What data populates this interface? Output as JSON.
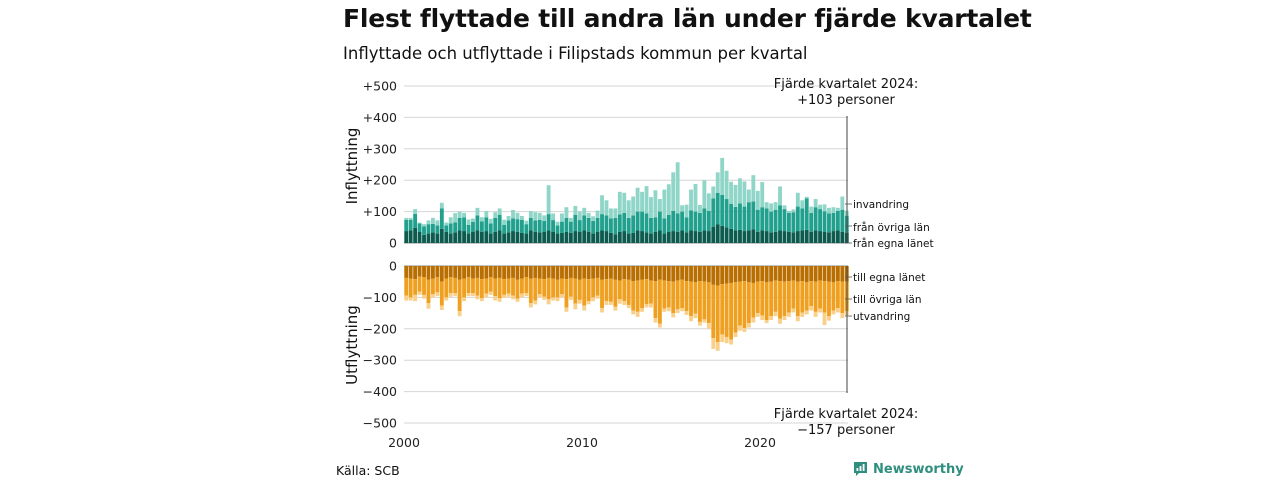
{
  "title": "Flest flyttade till andra län under fjärde kvartalet",
  "subtitle": "Inflyttade och utflyttade i Filipstads kommun per kvartal",
  "source": "Källa: SCB",
  "brand": {
    "name": "Newsworthy",
    "icon": "newsworthy-logo-icon",
    "color": "#2f8f7f"
  },
  "chart_data": {
    "type": "bar",
    "stacked": true,
    "x_start": 2000,
    "quarters_per_year": 4,
    "xticks": [
      "2000",
      "2010",
      "2020"
    ],
    "panels": [
      {
        "ylabel": "Inflyttning",
        "ylim": [
          0,
          500
        ],
        "yticks": [
          "0",
          "+100",
          "+200",
          "+300",
          "+400",
          "+500"
        ],
        "annotation": {
          "line1": "Fjärde kvartalet 2024:",
          "line2": "+103 personer"
        },
        "series": [
          {
            "name": "från egna länet",
            "color": "#0d5b4f",
            "values": [
              38,
              40,
              48,
              35,
              26,
              30,
              34,
              30,
              45,
              36,
              30,
              34,
              40,
              38,
              30,
              35,
              40,
              36,
              38,
              30,
              36,
              40,
              30,
              34,
              38,
              36,
              32,
              30,
              40,
              36,
              34,
              35,
              40,
              35,
              30,
              32,
              36,
              32,
              38,
              35,
              40,
              36,
              30,
              35,
              40,
              38,
              32,
              28,
              36,
              38,
              30,
              32,
              40,
              38,
              34,
              30,
              36,
              40,
              30,
              35,
              38,
              36,
              40,
              34,
              40,
              38,
              36,
              40,
              38,
              52,
              60,
              55,
              50,
              45,
              40,
              42,
              38,
              40,
              44,
              36,
              40,
              38,
              34,
              36,
              40,
              38,
              36,
              34,
              38,
              40,
              42,
              36,
              40,
              38,
              35,
              34,
              38,
              40,
              36,
              33
            ]
          },
          {
            "name": "från övriga län",
            "color": "#21a08d",
            "values": [
              36,
              34,
              45,
              27,
              27,
              30,
              27,
              26,
              65,
              20,
              32,
              32,
              40,
              44,
              28,
              32,
              48,
              33,
              44,
              32,
              44,
              50,
              28,
              38,
              40,
              40,
              42,
              30,
              40,
              36,
              40,
              35,
              52,
              38,
              26,
              36,
              44,
              36,
              52,
              38,
              48,
              44,
              40,
              45,
              52,
              50,
              46,
              52,
              55,
              58,
              50,
              56,
              60,
              62,
              60,
              50,
              46,
              60,
              48,
              55,
              64,
              58,
              60,
              48,
              64,
              62,
              60,
              70,
              64,
              90,
              100,
              98,
              90,
              80,
              75,
              84,
              78,
              90,
              88,
              70,
              74,
              72,
              66,
              70,
              80,
              70,
              60,
              64,
              78,
              70,
              100,
              60,
              74,
              70,
              66,
              60,
              58,
              62,
              70,
              54
            ]
          },
          {
            "name": "invandring",
            "color": "#8fd5c8",
            "values": [
              6,
              6,
              15,
              3,
              7,
              12,
              19,
              16,
              18,
              9,
              20,
              29,
              20,
              14,
              17,
              11,
              24,
              13,
              20,
              15,
              18,
              20,
              16,
              14,
              27,
              20,
              12,
              11,
              22,
              26,
              22,
              18,
              92,
              21,
              12,
              26,
              34,
              12,
              28,
              27,
              24,
              16,
              15,
              23,
              60,
              48,
              32,
              30,
              72,
              64,
              56,
              60,
              76,
              63,
              87,
              66,
              86,
              40,
              92,
              97,
              123,
              163,
              20,
              40,
              66,
              88,
              25,
              90,
              56,
              38,
              65,
              118,
              90,
              70,
              70,
              80,
              80,
              40,
              84,
              60,
              80,
              20,
              26,
              24,
              60,
              12,
              6,
              9,
              44,
              26,
              5,
              20,
              26,
              14,
              22,
              18,
              18,
              10,
              42,
              16
            ]
          }
        ]
      },
      {
        "ylabel": "Utflyttning",
        "ylim": [
          -500,
          0
        ],
        "yticks": [
          "0",
          "−100",
          "−200",
          "−300",
          "−400",
          "−500"
        ],
        "annotation": {
          "line1": "Fjärde kvartalet 2024:",
          "line2": "−157 personer"
        },
        "series": [
          {
            "name": "till egna länet",
            "color": "#b86e00",
            "values": [
              -38,
              -40,
              -42,
              -34,
              -36,
              -44,
              -40,
              -36,
              -50,
              -40,
              -36,
              -38,
              -44,
              -40,
              -36,
              -40,
              -38,
              -42,
              -40,
              -36,
              -40,
              -38,
              -42,
              -40,
              -38,
              -44,
              -40,
              -36,
              -40,
              -38,
              -40,
              -42,
              -38,
              -40,
              -44,
              -40,
              -42,
              -38,
              -40,
              -44,
              -40,
              -42,
              -40,
              -38,
              -44,
              -42,
              -40,
              -44,
              -46,
              -42,
              -44,
              -48,
              -46,
              -44,
              -42,
              -46,
              -48,
              -44,
              -46,
              -48,
              -50,
              -46,
              -44,
              -48,
              -50,
              -52,
              -48,
              -50,
              -52,
              -60,
              -62,
              -58,
              -56,
              -54,
              -52,
              -50,
              -48,
              -52,
              -54,
              -50,
              -48,
              -52,
              -50,
              -46,
              -48,
              -50,
              -48,
              -46,
              -50,
              -48,
              -52,
              -48,
              -50,
              -46,
              -48,
              -50,
              -52,
              -48,
              -50,
              -50
            ]
          },
          {
            "name": "till övriga län",
            "color": "#f0a020",
            "values": [
              -56,
              -60,
              -50,
              -48,
              -56,
              -74,
              -50,
              -48,
              -76,
              -60,
              -50,
              -48,
              -100,
              -60,
              -50,
              -46,
              -56,
              -60,
              -48,
              -46,
              -56,
              -64,
              -50,
              -48,
              -56,
              -60,
              -48,
              -50,
              -78,
              -72,
              -50,
              -56,
              -68,
              -60,
              -56,
              -50,
              -90,
              -60,
              -80,
              -64,
              -86,
              -70,
              -60,
              -56,
              -90,
              -70,
              -74,
              -86,
              -60,
              -70,
              -80,
              -94,
              -100,
              -90,
              -80,
              -74,
              -118,
              -140,
              -90,
              -84,
              -100,
              -92,
              -90,
              -96,
              -110,
              -100,
              -130,
              -120,
              -130,
              -170,
              -180,
              -160,
              -170,
              -180,
              -160,
              -140,
              -150,
              -130,
              -110,
              -100,
              -110,
              -120,
              -110,
              -100,
              -120,
              -110,
              -100,
              -90,
              -110,
              -100,
              -90,
              -80,
              -96,
              -90,
              -100,
              -110,
              -90,
              -86,
              -100,
              -94
            ]
          },
          {
            "name": "utvandring",
            "color": "#f9d08a",
            "values": [
              -16,
              -10,
              -20,
              -10,
              -12,
              -18,
              -10,
              -12,
              -14,
              -10,
              -12,
              -10,
              -16,
              -12,
              -10,
              -10,
              -12,
              -10,
              -12,
              -10,
              -14,
              -12,
              -10,
              -10,
              -12,
              -10,
              -12,
              -10,
              -14,
              -12,
              -10,
              -10,
              -16,
              -10,
              -12,
              -10,
              -14,
              -10,
              -18,
              -12,
              -16,
              -10,
              -12,
              -10,
              -14,
              -12,
              -10,
              -12,
              -14,
              -12,
              -10,
              -12,
              -16,
              -12,
              -10,
              -12,
              -14,
              -12,
              -10,
              -12,
              -14,
              -12,
              -10,
              -12,
              -16,
              -14,
              -12,
              -10,
              -18,
              -34,
              -28,
              -24,
              -20,
              -16,
              -14,
              -16,
              -12,
              -14,
              -16,
              -12,
              -14,
              -10,
              -12,
              -14,
              -16,
              -12,
              -14,
              -12,
              -16,
              -14,
              -12,
              -14,
              -16,
              -12,
              -40,
              -14,
              -12,
              -14,
              -16,
              -13
            ]
          }
        ]
      }
    ]
  }
}
